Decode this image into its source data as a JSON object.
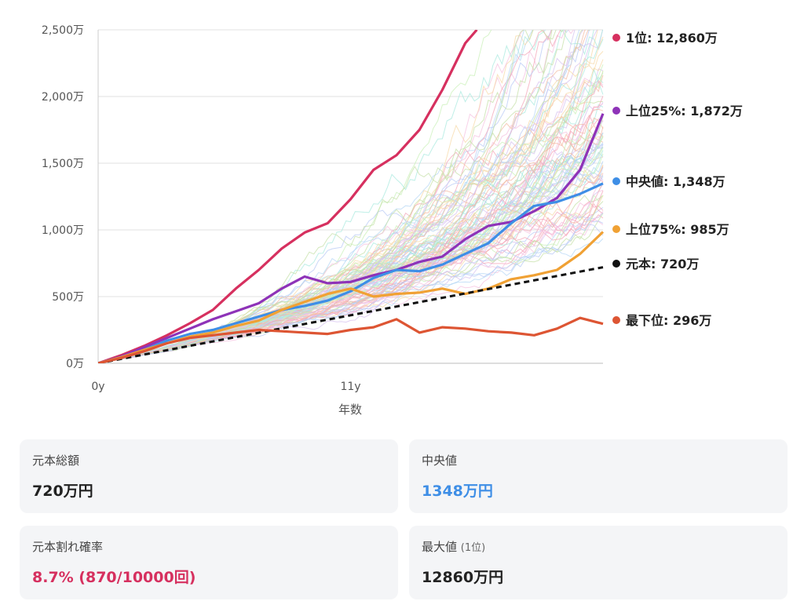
{
  "chart_data": {
    "type": "line",
    "title": "",
    "xlabel": "年数",
    "ylabel": "",
    "x_ticks": [
      "0y",
      "11y"
    ],
    "x_range": [
      0,
      22
    ],
    "ylim": [
      0,
      2500
    ],
    "y_ticks": [
      "0万",
      "500万",
      "1,000万",
      "1,500万",
      "2,000万",
      "2,500万"
    ],
    "y_tick_values": [
      0,
      500,
      1000,
      1500,
      2000,
      2500
    ],
    "grid": true,
    "background_paths": 100,
    "series": [
      {
        "name": "1位: 12,860万",
        "color": "#d6305f",
        "final": 12860,
        "points": [
          [
            0,
            0
          ],
          [
            1,
            60
          ],
          [
            2,
            130
          ],
          [
            3,
            210
          ],
          [
            4,
            300
          ],
          [
            5,
            400
          ],
          [
            6,
            560
          ],
          [
            7,
            700
          ],
          [
            8,
            860
          ],
          [
            9,
            980
          ],
          [
            10,
            1050
          ],
          [
            11,
            1230
          ],
          [
            12,
            1450
          ],
          [
            13,
            1560
          ],
          [
            14,
            1750
          ],
          [
            15,
            2050
          ],
          [
            16,
            2400
          ],
          [
            16.5,
            2500
          ]
        ]
      },
      {
        "name": "上位25%: 1,872万",
        "color": "#8e33b8",
        "final": 1872,
        "points": [
          [
            0,
            0
          ],
          [
            1,
            50
          ],
          [
            2,
            120
          ],
          [
            3,
            190
          ],
          [
            4,
            260
          ],
          [
            5,
            330
          ],
          [
            6,
            390
          ],
          [
            7,
            450
          ],
          [
            8,
            560
          ],
          [
            9,
            650
          ],
          [
            10,
            600
          ],
          [
            11,
            610
          ],
          [
            12,
            660
          ],
          [
            13,
            700
          ],
          [
            14,
            760
          ],
          [
            15,
            800
          ],
          [
            16,
            930
          ],
          [
            17,
            1030
          ],
          [
            18,
            1060
          ],
          [
            19,
            1140
          ],
          [
            20,
            1240
          ],
          [
            21,
            1450
          ],
          [
            22,
            1872
          ]
        ]
      },
      {
        "name": "中央値: 1,348万",
        "color": "#3e8ee6",
        "final": 1348,
        "points": [
          [
            0,
            0
          ],
          [
            1,
            45
          ],
          [
            2,
            100
          ],
          [
            3,
            170
          ],
          [
            4,
            220
          ],
          [
            5,
            250
          ],
          [
            6,
            300
          ],
          [
            7,
            350
          ],
          [
            8,
            400
          ],
          [
            9,
            430
          ],
          [
            10,
            470
          ],
          [
            11,
            540
          ],
          [
            12,
            640
          ],
          [
            13,
            700
          ],
          [
            14,
            690
          ],
          [
            15,
            740
          ],
          [
            16,
            820
          ],
          [
            17,
            900
          ],
          [
            18,
            1050
          ],
          [
            19,
            1180
          ],
          [
            20,
            1210
          ],
          [
            21,
            1270
          ],
          [
            22,
            1348
          ]
        ]
      },
      {
        "name": "上位75%: 985万",
        "color": "#f0a134",
        "final": 985,
        "points": [
          [
            0,
            0
          ],
          [
            1,
            45
          ],
          [
            2,
            100
          ],
          [
            3,
            150
          ],
          [
            4,
            200
          ],
          [
            5,
            230
          ],
          [
            6,
            280
          ],
          [
            7,
            320
          ],
          [
            8,
            400
          ],
          [
            9,
            460
          ],
          [
            10,
            520
          ],
          [
            11,
            560
          ],
          [
            12,
            500
          ],
          [
            13,
            520
          ],
          [
            14,
            530
          ],
          [
            15,
            560
          ],
          [
            16,
            520
          ],
          [
            17,
            560
          ],
          [
            18,
            630
          ],
          [
            19,
            660
          ],
          [
            20,
            700
          ],
          [
            21,
            820
          ],
          [
            22,
            985
          ]
        ]
      },
      {
        "name": "元本: 720万",
        "color": "#111111",
        "final": 720,
        "dashed": true,
        "points": [
          [
            0,
            0
          ],
          [
            22,
            720
          ]
        ]
      },
      {
        "name": "最下位: 296万",
        "color": "#dd5533",
        "final": 296,
        "points": [
          [
            0,
            0
          ],
          [
            1,
            40
          ],
          [
            2,
            90
          ],
          [
            3,
            150
          ],
          [
            4,
            190
          ],
          [
            5,
            210
          ],
          [
            6,
            230
          ],
          [
            7,
            250
          ],
          [
            8,
            240
          ],
          [
            9,
            230
          ],
          [
            10,
            220
          ],
          [
            11,
            250
          ],
          [
            12,
            270
          ],
          [
            13,
            330
          ],
          [
            14,
            230
          ],
          [
            15,
            270
          ],
          [
            16,
            260
          ],
          [
            17,
            240
          ],
          [
            18,
            230
          ],
          [
            19,
            210
          ],
          [
            20,
            260
          ],
          [
            21,
            340
          ],
          [
            22,
            296
          ]
        ]
      }
    ]
  },
  "cards": {
    "principal_total": {
      "label": "元本総額",
      "value": "720万円"
    },
    "median": {
      "label": "中央値",
      "value": "1348万円",
      "color": "#3e8ee6"
    },
    "loss_probability": {
      "label": "元本割れ確率",
      "value": "8.7% (870/10000回)",
      "color": "#d6305f"
    },
    "max_value": {
      "label": "最大値",
      "label_sub": "(1位)",
      "value": "12860万円"
    }
  }
}
